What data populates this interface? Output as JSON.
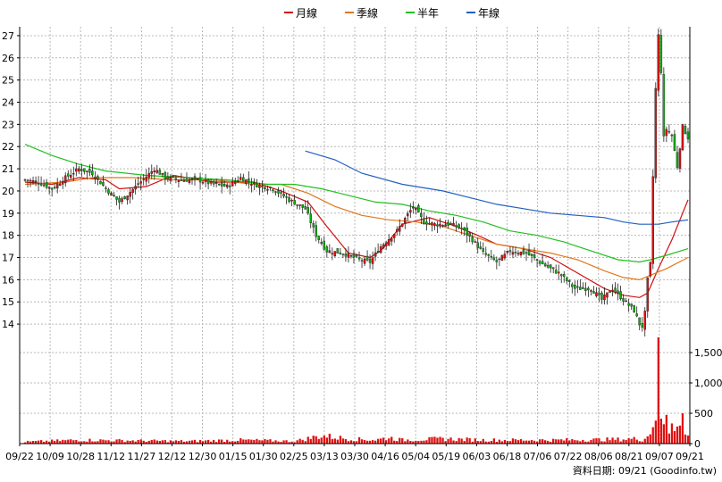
{
  "chart_data": {
    "type": "candlestick",
    "legend": [
      {
        "name": "月線",
        "color": "#d01010"
      },
      {
        "name": "季線",
        "color": "#e07818"
      },
      {
        "name": "半年",
        "color": "#20c020"
      },
      {
        "name": "年線",
        "color": "#2060c0"
      }
    ],
    "legend_position": "top-center",
    "grid": true,
    "price_axis": {
      "ticks": [
        "14",
        "15",
        "16",
        "17",
        "18",
        "19",
        "20",
        "21",
        "22",
        "23",
        "24",
        "25",
        "26",
        "27"
      ],
      "range": [
        13.4,
        27.4
      ]
    },
    "volume_axis": {
      "ticks": [
        "0",
        "500",
        "1,000",
        "1,500"
      ],
      "range": [
        0,
        1750
      ]
    },
    "x_tick_labels": [
      "09/22",
      "10/09",
      "10/28",
      "11/12",
      "11/27",
      "12/12",
      "12/30",
      "01/15",
      "01/30",
      "02/25",
      "03/13",
      "03/30",
      "04/16",
      "05/04",
      "05/19",
      "06/03",
      "06/18",
      "07/06",
      "07/22",
      "08/06",
      "08/21",
      "09/07",
      "09/21"
    ],
    "up_color": "#e01010",
    "down_color": "#10b010",
    "price_anchors": [
      [
        0,
        20.5
      ],
      [
        5,
        20.4
      ],
      [
        10,
        20.1
      ],
      [
        15,
        20.6
      ],
      [
        20,
        21.0
      ],
      [
        25,
        20.8
      ],
      [
        30,
        20.1
      ],
      [
        35,
        19.5
      ],
      [
        42,
        20.3
      ],
      [
        48,
        21.0
      ],
      [
        52,
        20.6
      ],
      [
        58,
        20.5
      ],
      [
        64,
        20.5
      ],
      [
        70,
        20.3
      ],
      [
        75,
        20.2
      ],
      [
        80,
        20.6
      ],
      [
        85,
        20.3
      ],
      [
        92,
        20.1
      ],
      [
        98,
        19.6
      ],
      [
        104,
        19.2
      ],
      [
        108,
        18.0
      ],
      [
        112,
        17.3
      ],
      [
        118,
        17.2
      ],
      [
        124,
        16.9
      ],
      [
        128,
        16.8
      ],
      [
        132,
        17.5
      ],
      [
        138,
        18.2
      ],
      [
        144,
        19.3
      ],
      [
        148,
        18.6
      ],
      [
        152,
        18.5
      ],
      [
        158,
        18.5
      ],
      [
        162,
        18.3
      ],
      [
        166,
        17.8
      ],
      [
        170,
        17.2
      ],
      [
        175,
        16.8
      ],
      [
        180,
        17.3
      ],
      [
        186,
        17.2
      ],
      [
        192,
        16.7
      ],
      [
        198,
        16.3
      ],
      [
        204,
        15.6
      ],
      [
        210,
        15.6
      ],
      [
        214,
        15.1
      ],
      [
        218,
        15.6
      ],
      [
        222,
        15.1
      ],
      [
        226,
        14.6
      ],
      [
        228,
        14.0
      ],
      [
        229,
        13.9
      ],
      [
        230,
        14.5
      ],
      [
        231,
        16.0
      ],
      [
        232,
        16.7
      ],
      [
        234,
        24.6
      ],
      [
        235,
        27.0
      ],
      [
        236,
        25.4
      ],
      [
        237,
        22.4
      ],
      [
        238,
        22.8
      ],
      [
        240,
        22.5
      ],
      [
        242,
        21.1
      ],
      [
        244,
        22.9
      ],
      [
        246,
        22.4
      ]
    ],
    "volume_anchors": [
      [
        0,
        30
      ],
      [
        20,
        60
      ],
      [
        40,
        50
      ],
      [
        60,
        40
      ],
      [
        80,
        60
      ],
      [
        100,
        40
      ],
      [
        110,
        130
      ],
      [
        120,
        80
      ],
      [
        130,
        60
      ],
      [
        135,
        100
      ],
      [
        140,
        60
      ],
      [
        155,
        80
      ],
      [
        170,
        60
      ],
      [
        200,
        60
      ],
      [
        220,
        70
      ],
      [
        227,
        80
      ],
      [
        229,
        60
      ],
      [
        231,
        120
      ],
      [
        232,
        200
      ],
      [
        234,
        500
      ],
      [
        235,
        1560
      ],
      [
        236,
        450
      ],
      [
        237,
        260
      ],
      [
        238,
        520
      ],
      [
        239,
        230
      ],
      [
        240,
        400
      ],
      [
        241,
        300
      ],
      [
        242,
        460
      ],
      [
        243,
        300
      ],
      [
        244,
        430
      ],
      [
        245,
        150
      ],
      [
        246,
        120
      ]
    ],
    "moving_averages": [
      {
        "name": "月線",
        "points": [
          [
            0,
            20.4
          ],
          [
            10,
            20.3
          ],
          [
            20,
            20.6
          ],
          [
            30,
            20.5
          ],
          [
            35,
            20.1
          ],
          [
            45,
            20.2
          ],
          [
            55,
            20.7
          ],
          [
            70,
            20.4
          ],
          [
            85,
            20.4
          ],
          [
            95,
            20.0
          ],
          [
            105,
            19.5
          ],
          [
            112,
            18.4
          ],
          [
            120,
            17.2
          ],
          [
            128,
            17.0
          ],
          [
            132,
            17.3
          ],
          [
            140,
            18.5
          ],
          [
            150,
            18.8
          ],
          [
            160,
            18.4
          ],
          [
            168,
            18.0
          ],
          [
            175,
            17.6
          ],
          [
            185,
            17.4
          ],
          [
            195,
            17.0
          ],
          [
            205,
            16.3
          ],
          [
            215,
            15.6
          ],
          [
            222,
            15.3
          ],
          [
            228,
            15.2
          ],
          [
            231,
            15.4
          ],
          [
            235,
            16.5
          ],
          [
            240,
            17.8
          ],
          [
            246,
            19.6
          ]
        ]
      },
      {
        "name": "季線",
        "points": [
          [
            0,
            20.3
          ],
          [
            15,
            20.4
          ],
          [
            25,
            20.6
          ],
          [
            40,
            20.6
          ],
          [
            55,
            20.5
          ],
          [
            70,
            20.5
          ],
          [
            85,
            20.3
          ],
          [
            95,
            20.3
          ],
          [
            105,
            19.9
          ],
          [
            115,
            19.3
          ],
          [
            125,
            18.9
          ],
          [
            135,
            18.7
          ],
          [
            145,
            18.6
          ],
          [
            155,
            18.4
          ],
          [
            165,
            18.0
          ],
          [
            175,
            17.6
          ],
          [
            185,
            17.4
          ],
          [
            195,
            17.2
          ],
          [
            205,
            16.9
          ],
          [
            215,
            16.4
          ],
          [
            222,
            16.1
          ],
          [
            228,
            16.0
          ],
          [
            232,
            16.2
          ],
          [
            238,
            16.5
          ],
          [
            246,
            17.0
          ]
        ]
      },
      {
        "name": "半年",
        "points": [
          [
            0,
            22.1
          ],
          [
            10,
            21.6
          ],
          [
            20,
            21.2
          ],
          [
            30,
            20.9
          ],
          [
            45,
            20.7
          ],
          [
            60,
            20.6
          ],
          [
            75,
            20.5
          ],
          [
            90,
            20.3
          ],
          [
            100,
            20.3
          ],
          [
            110,
            20.1
          ],
          [
            120,
            19.8
          ],
          [
            130,
            19.5
          ],
          [
            140,
            19.4
          ],
          [
            150,
            19.1
          ],
          [
            160,
            18.9
          ],
          [
            170,
            18.6
          ],
          [
            180,
            18.2
          ],
          [
            190,
            18.0
          ],
          [
            200,
            17.7
          ],
          [
            210,
            17.3
          ],
          [
            220,
            16.9
          ],
          [
            228,
            16.8
          ],
          [
            232,
            16.9
          ],
          [
            238,
            17.1
          ],
          [
            246,
            17.4
          ]
        ]
      },
      {
        "name": "年線",
        "points": [
          [
            104,
            21.8
          ],
          [
            115,
            21.4
          ],
          [
            125,
            20.8
          ],
          [
            140,
            20.3
          ],
          [
            155,
            20.0
          ],
          [
            165,
            19.7
          ],
          [
            175,
            19.4
          ],
          [
            185,
            19.2
          ],
          [
            195,
            19.0
          ],
          [
            205,
            18.9
          ],
          [
            215,
            18.8
          ],
          [
            222,
            18.6
          ],
          [
            228,
            18.5
          ],
          [
            235,
            18.5
          ],
          [
            240,
            18.6
          ],
          [
            246,
            18.7
          ]
        ]
      }
    ]
  },
  "source_text": "資料日期: 09/21 (Goodinfo.tw)"
}
